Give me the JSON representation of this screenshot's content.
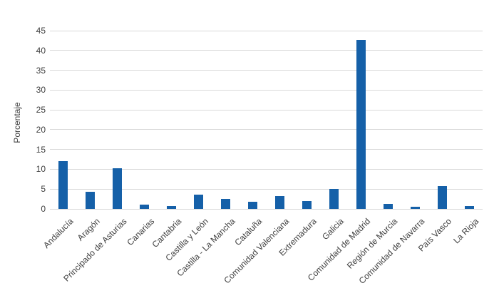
{
  "chart_data": {
    "type": "bar",
    "title": "",
    "xlabel": "",
    "ylabel": "Porcentaje",
    "categories": [
      "Andalucía",
      "Aragón",
      "Principado de Asturias",
      "Canarias",
      "Cantabria",
      "Castilla y León",
      "Castilla - La Mancha",
      "Cataluña",
      "Comunidad Valenciana",
      "Extremadura",
      "Galicia",
      "Comunidad de Madrid",
      "Región de Murcia",
      "Comunidad de Navarra",
      "País Vasco",
      "La Rioja"
    ],
    "values": [
      12,
      4.4,
      10.3,
      1,
      0.8,
      3.6,
      2.6,
      1.8,
      3.2,
      1.9,
      5,
      42.7,
      1.2,
      0.5,
      5.8,
      0.7
    ],
    "ylim": [
      0,
      45
    ],
    "ytick_step": 5,
    "grid": true,
    "legend": false,
    "bar_color": "#1560A8",
    "gridline_color": "#D9D9D9",
    "text_color": "#404040"
  }
}
